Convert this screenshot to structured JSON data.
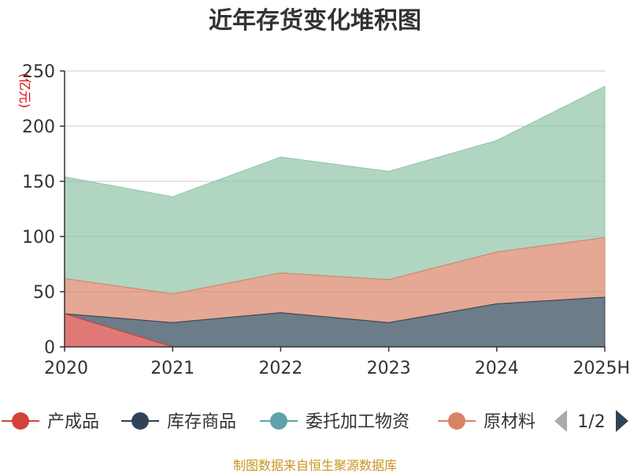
{
  "chart_data": {
    "type": "area",
    "title": "近年存货变化堆积图",
    "ylabel": "(亿元)",
    "categories": [
      "2020",
      "2021",
      "2022",
      "2023",
      "2024",
      "2025H"
    ],
    "ylim": [
      0,
      250
    ],
    "yticks": [
      0,
      50,
      100,
      150,
      200,
      250
    ],
    "stacked": true,
    "grid": true,
    "legend_position": "bottom",
    "series": [
      {
        "name": "产成品",
        "color": "#d4413d",
        "values": [
          30,
          0,
          0,
          0,
          0,
          0
        ]
      },
      {
        "name": "库存商品",
        "color": "#2e4456",
        "values": [
          0,
          22,
          31,
          22,
          39,
          45
        ]
      },
      {
        "name": "委托加工物资",
        "color": "#5fa3a9",
        "values": [
          0,
          0,
          0,
          0,
          0,
          0
        ]
      },
      {
        "name": "原材料",
        "color": "#d98366",
        "values": [
          32,
          26,
          36,
          39,
          47,
          54
        ]
      },
      {
        "name": "",
        "color": "#8ec5a8",
        "values": [
          92,
          88,
          105,
          98,
          101,
          137
        ]
      }
    ]
  },
  "legend": {
    "items": [
      {
        "label": "产成品",
        "color": "#d4413d"
      },
      {
        "label": "库存商品",
        "color": "#2e4456"
      },
      {
        "label": "委托加工物资",
        "color": "#5fa3a9"
      },
      {
        "label": "原材料",
        "color": "#d98366"
      }
    ],
    "page": "1/2"
  },
  "footer": {
    "source": "制图数据来自恒生聚源数据库"
  }
}
